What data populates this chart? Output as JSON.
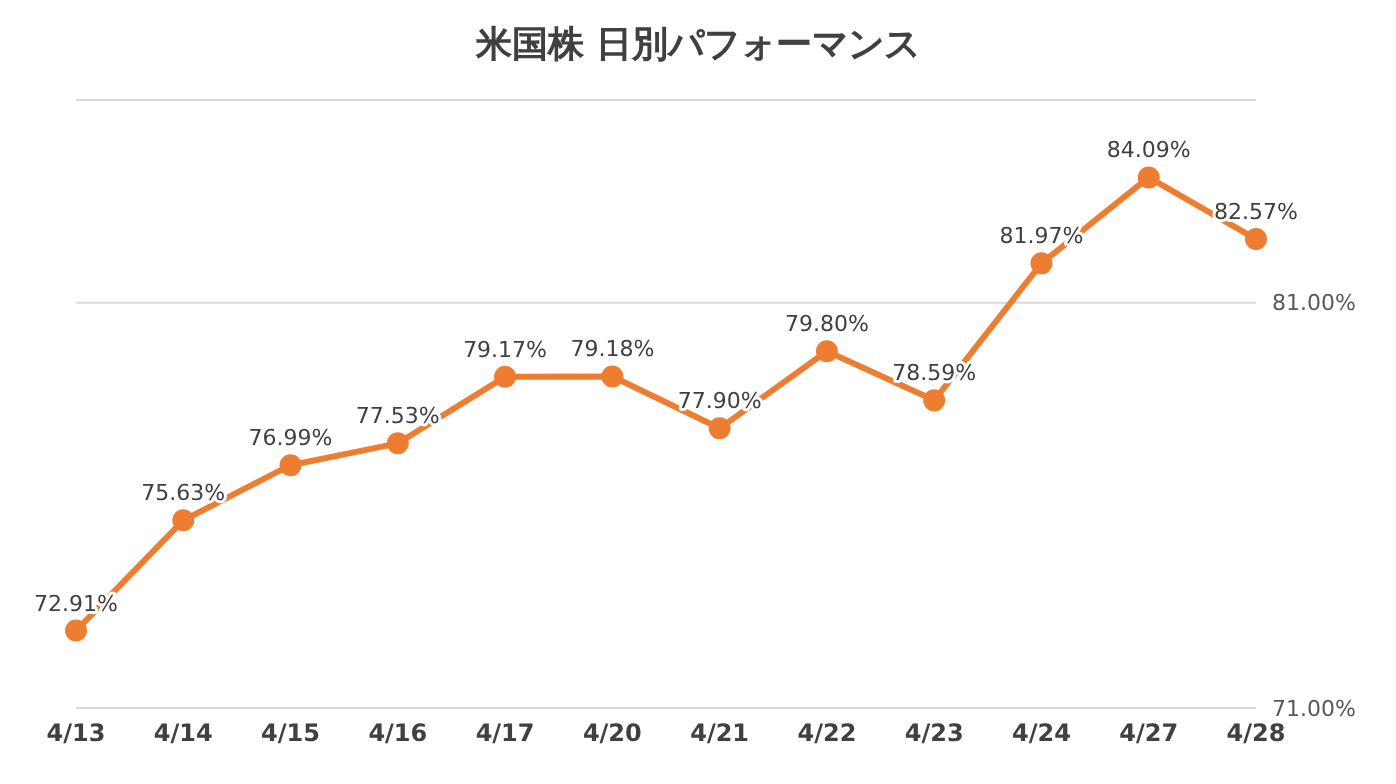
{
  "chart_data": {
    "type": "line",
    "title": "米国株 日別パフォーマンス",
    "categories": [
      "4/13",
      "4/14",
      "4/15",
      "4/16",
      "4/17",
      "4/20",
      "4/21",
      "4/22",
      "4/23",
      "4/24",
      "4/27",
      "4/28"
    ],
    "values": [
      72.91,
      75.63,
      76.99,
      77.53,
      79.17,
      79.18,
      77.9,
      79.8,
      78.59,
      81.97,
      84.09,
      82.57
    ],
    "value_labels": [
      "72.91%",
      "75.63%",
      "76.99%",
      "77.53%",
      "79.17%",
      "79.18%",
      "77.90%",
      "79.80%",
      "78.59%",
      "81.97%",
      "84.09%",
      "82.57%"
    ],
    "color": "#ed7d31",
    "marker": "circle",
    "line_style": "solid",
    "grid": "y",
    "ylim": [
      71,
      86
    ],
    "yticks": [
      {
        "value": 71,
        "label": "71.00%"
      },
      {
        "value": 81,
        "label": "81.00%"
      }
    ]
  }
}
